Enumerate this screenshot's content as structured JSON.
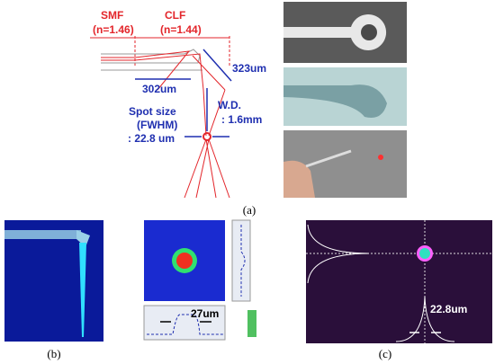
{
  "diagram": {
    "smf": {
      "label": "SMF",
      "index": "(n=1.46)"
    },
    "clf": {
      "label": "CLF",
      "index": "(n=1.44)"
    },
    "length_323": "323um",
    "length_302": "302um",
    "spot": {
      "line1": "Spot size",
      "line2": "(FWHM)",
      "line3": ": 22.8 um"
    },
    "wd": {
      "line1": "W.D.",
      "line2": ": 1.6mm"
    }
  },
  "panels": {
    "a": "(a)",
    "b": "(b)",
    "c": "(c)"
  },
  "sim_width": "27um",
  "meas_width": "22.8um"
}
